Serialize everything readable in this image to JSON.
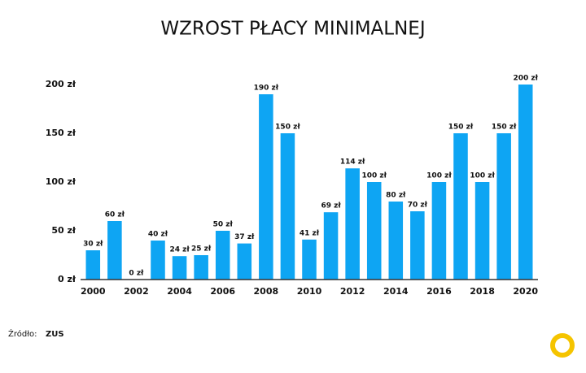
{
  "chart_data": {
    "type": "bar",
    "title": "WZROST PŁACY MINIMALNEJ",
    "categories": [
      "2000",
      null,
      "2002",
      null,
      "2004",
      null,
      "2006",
      null,
      "2008",
      null,
      "2010",
      null,
      "2012",
      null,
      "2014",
      null,
      "2016",
      null,
      "2018",
      null,
      "2020"
    ],
    "values": [
      30,
      60,
      0,
      40,
      24,
      25,
      50,
      37,
      190,
      150,
      41,
      69,
      114,
      100,
      80,
      70,
      100,
      150,
      100,
      150,
      200
    ],
    "value_labels": [
      "30 zł",
      "60 zł",
      "0 zł",
      "40 zł",
      "24 zł",
      "25 zł",
      "50 zł",
      "37 zł",
      "190 zł",
      "150 zł",
      "41 zł",
      "69 zł",
      "114 zł",
      "100 zł",
      "80 zł",
      "70 zł",
      "100 zł",
      "150 zł",
      "100 zł",
      "150 zł",
      "200 zł"
    ],
    "color": "#0ea5f3",
    "ylim": [
      0,
      200
    ],
    "yticks": [
      {
        "value": 0,
        "label": "0 zł"
      },
      {
        "value": 50,
        "label": "50 zł"
      },
      {
        "value": 100,
        "label": "100 zł"
      },
      {
        "value": 150,
        "label": "150 zł"
      },
      {
        "value": 200,
        "label": "200 zł"
      }
    ],
    "grid": false,
    "source": {
      "label": "Źródło:",
      "name": "ZUS"
    }
  }
}
